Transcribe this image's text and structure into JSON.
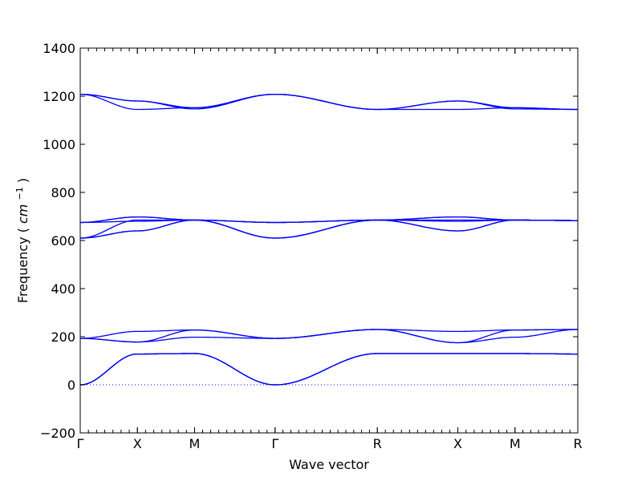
{
  "chart_data": {
    "type": "line",
    "title": "",
    "xlabel": "Wave vector",
    "ylabel": "Frequency",
    "ylabel_unit": "cm",
    "ylabel_unit_exp": "−1",
    "ylim": [
      -200,
      1400
    ],
    "yticks": [
      "−200",
      "0",
      "200",
      "400",
      "600",
      "800",
      "1000",
      "1200",
      "1400"
    ],
    "ytick_values": [
      -200,
      0,
      200,
      400,
      600,
      800,
      1000,
      1200,
      1400
    ],
    "xlim": [
      0,
      6.18
    ],
    "high_symmetry_points": [
      {
        "label": "Γ",
        "x": 0
      },
      {
        "label": "X",
        "x": 0.71
      },
      {
        "label": "M",
        "x": 1.42
      },
      {
        "label": "Γ",
        "x": 2.42
      },
      {
        "label": "R",
        "x": 3.69
      },
      {
        "label": "X",
        "x": 4.69
      },
      {
        "label": "M",
        "x": 5.4
      },
      {
        "label": "R",
        "x": 6.18
      }
    ],
    "zero_line": true,
    "grid": false,
    "series": [
      {
        "x": [
          0,
          0.71,
          1.42,
          2.42,
          3.69,
          4.69,
          5.4,
          6.18
        ],
        "values": [
          0,
          128,
          130,
          0,
          130,
          130,
          130,
          128
        ]
      },
      {
        "x": [
          0,
          0.71,
          1.42,
          2.42,
          3.69,
          4.69,
          5.4,
          6.18
        ],
        "values": [
          0,
          128,
          130,
          0,
          130,
          130,
          130,
          128
        ]
      },
      {
        "x": [
          0,
          0.71,
          1.42,
          2.42,
          3.69,
          4.69,
          5.4,
          6.18
        ],
        "values": [
          0,
          128,
          130,
          0,
          130,
          130,
          130,
          128
        ]
      },
      {
        "x": [
          0,
          0.71,
          1.42,
          2.42,
          3.69,
          4.69,
          5.4,
          6.18
        ],
        "values": [
          193,
          178,
          228,
          193,
          230,
          175,
          228,
          230
        ]
      },
      {
        "x": [
          0,
          0.71,
          1.42,
          2.42,
          3.69,
          4.69,
          5.4,
          6.18
        ],
        "values": [
          193,
          178,
          198,
          193,
          230,
          175,
          198,
          230
        ]
      },
      {
        "x": [
          0,
          0.71,
          1.42,
          2.42,
          3.69,
          4.69,
          5.4,
          6.18
        ],
        "values": [
          193,
          222,
          228,
          193,
          230,
          222,
          228,
          230
        ]
      },
      {
        "x": [
          0,
          0.71,
          1.42,
          2.42,
          3.69,
          4.69,
          5.4,
          6.18
        ],
        "values": [
          610,
          640,
          685,
          610,
          685,
          640,
          685,
          683
        ]
      },
      {
        "x": [
          0,
          0.71,
          1.42,
          2.42,
          3.69,
          4.69,
          5.4,
          6.18
        ],
        "values": [
          610,
          640,
          685,
          610,
          685,
          640,
          685,
          683
        ]
      },
      {
        "x": [
          0,
          0.71,
          1.42,
          2.42,
          3.69,
          4.69,
          5.4,
          6.18
        ],
        "values": [
          610,
          685,
          685,
          610,
          685,
          685,
          685,
          683
        ]
      },
      {
        "x": [
          0,
          0.71,
          1.42,
          2.42,
          3.69,
          4.69,
          5.4,
          6.18
        ],
        "values": [
          675,
          698,
          685,
          675,
          685,
          698,
          685,
          683
        ]
      },
      {
        "x": [
          0,
          0.71,
          1.42,
          2.42,
          3.69,
          4.69,
          5.4,
          6.18
        ],
        "values": [
          675,
          698,
          685,
          675,
          685,
          698,
          685,
          683
        ]
      },
      {
        "x": [
          0,
          0.71,
          1.42,
          2.42,
          3.69,
          4.69,
          5.4,
          6.18
        ],
        "values": [
          675,
          680,
          685,
          675,
          685,
          680,
          685,
          683
        ]
      },
      {
        "x": [
          0,
          0.71,
          1.42,
          2.42,
          3.69,
          4.69,
          5.4,
          6.18
        ],
        "values": [
          1208,
          1180,
          1152,
          1208,
          1145,
          1180,
          1152,
          1145
        ]
      },
      {
        "x": [
          0,
          0.71,
          1.42,
          2.42,
          3.69,
          4.69,
          5.4,
          6.18
        ],
        "values": [
          1208,
          1145,
          1152,
          1208,
          1145,
          1145,
          1152,
          1145
        ]
      },
      {
        "x": [
          0,
          0.71,
          1.42,
          2.42,
          3.69,
          4.69,
          5.4,
          6.18
        ],
        "values": [
          1208,
          1180,
          1147,
          1208,
          1145,
          1180,
          1147,
          1145
        ]
      }
    ]
  }
}
